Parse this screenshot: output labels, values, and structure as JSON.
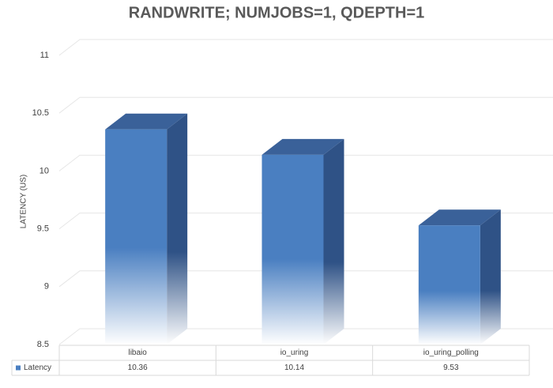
{
  "chart_data": {
    "type": "bar3d",
    "title": "RANDWRITE; NUMJOBS=1, QDEPTH=1",
    "y_label": "LATENCY (US)",
    "categories": [
      "libaio",
      "io_uring",
      "io_uring_polling"
    ],
    "series": [
      {
        "name": "Latency",
        "color": "#4a7fc1",
        "values": [
          10.36,
          10.14,
          9.53
        ]
      }
    ],
    "ylim": [
      8.5,
      11
    ],
    "yticks": [
      8.5,
      9,
      9.5,
      10,
      10.5,
      11
    ],
    "grid": true,
    "data_table": true
  }
}
